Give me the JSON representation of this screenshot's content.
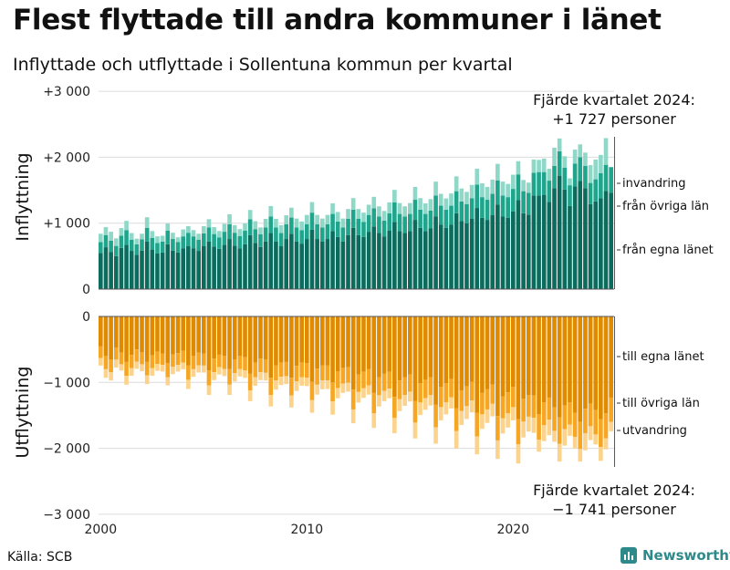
{
  "title": "Flest flyttade till andra kommuner i länet",
  "subtitle": "Inflyttade och utflyttade i Sollentuna kommun per kvartal",
  "source": "Källa: SCB",
  "brand": {
    "name": "Newsworthy",
    "icon": "bar-chart-logo-icon"
  },
  "colors": {
    "in_own": "#0b6b5d",
    "in_other": "#1fa58b",
    "in_immig": "#8fd8c8",
    "out_own": "#e08a00",
    "out_other": "#f6a623",
    "out_emig": "#fbd38d",
    "grid": "#dcdcdc"
  },
  "chart_data": [
    {
      "type": "bar",
      "stacked": true,
      "panel": "top",
      "ylabel": "Inflyttning",
      "ylim": [
        0,
        3000
      ],
      "yticks": [
        0,
        1000,
        2000,
        3000
      ],
      "ytick_labels": [
        "0",
        "+1 000",
        "+2 000",
        "+3 000"
      ],
      "x_start": "2000 Q1",
      "quarters": 100,
      "series": [
        {
          "name": "från egna länet",
          "values": [
            550,
            635,
            565,
            500,
            625,
            670,
            580,
            520,
            585,
            720,
            600,
            540,
            555,
            680,
            585,
            555,
            620,
            655,
            620,
            580,
            650,
            720,
            645,
            610,
            670,
            760,
            660,
            620,
            680,
            820,
            700,
            640,
            720,
            850,
            720,
            650,
            760,
            840,
            720,
            690,
            760,
            900,
            760,
            720,
            760,
            880,
            790,
            720,
            820,
            930,
            820,
            790,
            870,
            950,
            850,
            800,
            890,
            1020,
            880,
            850,
            880,
            1050,
            930,
            880,
            920,
            1100,
            980,
            930,
            980,
            1150,
            1030,
            1000,
            1070,
            1230,
            1080,
            1050,
            1120,
            1280,
            1100,
            1080,
            1180,
            1350,
            1150,
            1130,
            1420,
            1420,
            1430,
            1320,
            1530,
            1720,
            1510,
            1260,
            1560,
            1640,
            1530,
            1290,
            1330,
            1380,
            1490,
            1460
          ]
        },
        {
          "name": "från övriga län",
          "values": [
            165,
            185,
            170,
            155,
            185,
            225,
            170,
            160,
            170,
            210,
            175,
            160,
            165,
            205,
            175,
            160,
            180,
            200,
            180,
            170,
            195,
            215,
            190,
            175,
            200,
            225,
            195,
            185,
            205,
            240,
            210,
            190,
            215,
            250,
            215,
            200,
            225,
            245,
            215,
            205,
            225,
            260,
            225,
            215,
            225,
            260,
            235,
            215,
            245,
            275,
            245,
            230,
            255,
            275,
            250,
            240,
            260,
            295,
            260,
            250,
            260,
            305,
            275,
            260,
            270,
            320,
            285,
            275,
            285,
            335,
            300,
            290,
            310,
            355,
            315,
            305,
            325,
            370,
            320,
            315,
            340,
            390,
            335,
            330,
            345,
            355,
            345,
            325,
            340,
            370,
            330,
            315,
            345,
            360,
            340,
            320,
            335,
            380,
            395,
            390
          ]
        },
        {
          "name": "invandring",
          "values": [
            125,
            120,
            135,
            115,
            115,
            140,
            100,
            85,
            85,
            160,
            105,
            100,
            90,
            110,
            95,
            70,
            105,
            100,
            95,
            90,
            110,
            125,
            105,
            95,
            120,
            150,
            115,
            105,
            110,
            140,
            120,
            105,
            130,
            160,
            130,
            120,
            135,
            150,
            135,
            130,
            140,
            160,
            140,
            135,
            140,
            160,
            145,
            135,
            150,
            175,
            150,
            140,
            155,
            175,
            155,
            145,
            165,
            190,
            165,
            155,
            165,
            195,
            175,
            160,
            175,
            210,
            180,
            170,
            185,
            225,
            195,
            185,
            200,
            240,
            210,
            195,
            215,
            250,
            210,
            200,
            215,
            200,
            170,
            155,
            200,
            185,
            205,
            180,
            275,
            195,
            175,
            105,
            210,
            195,
            200,
            270,
            300,
            275,
            405,
            -123
          ]
        }
      ]
    },
    {
      "type": "bar",
      "stacked": true,
      "panel": "bottom",
      "ylabel": "Utflyttning",
      "ylim": [
        -3000,
        0
      ],
      "yticks": [
        -3000,
        -2000,
        -1000,
        0
      ],
      "ytick_labels": [
        "−3 000",
        "−2 000",
        "−1 000",
        "0"
      ],
      "xtick_labels": [
        {
          "year": "2000",
          "quarter_index": 0
        },
        {
          "year": "2010",
          "quarter_index": 40
        },
        {
          "year": "2020",
          "quarter_index": 80
        }
      ],
      "series": [
        {
          "name": "till egna länet",
          "values": [
            -455,
            -600,
            -650,
            -470,
            -550,
            -690,
            -585,
            -500,
            -545,
            -690,
            -590,
            -535,
            -560,
            -705,
            -575,
            -555,
            -520,
            -740,
            -600,
            -550,
            -560,
            -820,
            -640,
            -580,
            -600,
            -800,
            -650,
            -600,
            -620,
            -870,
            -700,
            -640,
            -650,
            -930,
            -740,
            -700,
            -690,
            -930,
            -750,
            -700,
            -710,
            -990,
            -790,
            -740,
            -740,
            -1000,
            -830,
            -780,
            -770,
            -1110,
            -880,
            -840,
            -800,
            -1160,
            -920,
            -870,
            -840,
            -1220,
            -970,
            -920,
            -880,
            -1280,
            -1010,
            -960,
            -920,
            -1340,
            -1070,
            -1010,
            -950,
            -1390,
            -1120,
            -1060,
            -990,
            -1460,
            -1160,
            -1100,
            -1030,
            -1510,
            -1210,
            -1150,
            -1070,
            -1560,
            -1250,
            -1190,
            -1200,
            -1480,
            -1300,
            -1230,
            -1380,
            -1530,
            -1350,
            -1300,
            -1460,
            -1600,
            -1400,
            -1320,
            -1420,
            -1560,
            -1470,
            -1230
          ]
        },
        {
          "name": "till övriga län",
          "values": [
            -175,
            -200,
            -195,
            -185,
            -175,
            -210,
            -200,
            -185,
            -180,
            -205,
            -195,
            -185,
            -175,
            -215,
            -190,
            -180,
            -180,
            -220,
            -200,
            -190,
            -185,
            -225,
            -205,
            -190,
            -195,
            -235,
            -210,
            -195,
            -200,
            -250,
            -220,
            -205,
            -205,
            -260,
            -230,
            -215,
            -215,
            -270,
            -235,
            -220,
            -220,
            -280,
            -245,
            -230,
            -230,
            -290,
            -255,
            -240,
            -235,
            -300,
            -265,
            -250,
            -245,
            -310,
            -275,
            -260,
            -255,
            -320,
            -285,
            -270,
            -260,
            -330,
            -295,
            -280,
            -270,
            -340,
            -305,
            -290,
            -275,
            -350,
            -315,
            -300,
            -285,
            -360,
            -325,
            -310,
            -295,
            -370,
            -335,
            -320,
            -305,
            -380,
            -345,
            -330,
            -335,
            -390,
            -350,
            -335,
            -355,
            -400,
            -360,
            -340,
            -365,
            -410,
            -370,
            -345,
            -370,
            -420,
            -380,
            -370
          ]
        },
        {
          "name": "utvandring",
          "values": [
            -115,
            -130,
            -125,
            -120,
            -95,
            -135,
            -115,
            -110,
            -105,
            -130,
            -115,
            -105,
            -100,
            -125,
            -110,
            -100,
            -100,
            -140,
            -115,
            -110,
            -105,
            -145,
            -120,
            -110,
            -110,
            -155,
            -125,
            -115,
            -110,
            -165,
            -130,
            -120,
            -115,
            -175,
            -140,
            -125,
            -120,
            -180,
            -145,
            -130,
            -125,
            -190,
            -150,
            -135,
            -130,
            -200,
            -155,
            -140,
            -135,
            -210,
            -160,
            -145,
            -140,
            -220,
            -170,
            -155,
            -145,
            -230,
            -180,
            -165,
            -150,
            -240,
            -190,
            -175,
            -160,
            -250,
            -200,
            -185,
            -170,
            -260,
            -210,
            -195,
            -180,
            -270,
            -220,
            -205,
            -190,
            -280,
            -230,
            -215,
            -200,
            -290,
            -240,
            -225,
            -230,
            -180,
            -240,
            -235,
            -165,
            -270,
            -250,
            -170,
            -175,
            -190,
            -260,
            -210,
            -150,
            -210,
            -165,
            -141
          ]
        }
      ]
    }
  ],
  "annotations": {
    "in_label_1": "Fjärde kvartalet 2024:",
    "in_label_2": "+1 727 personer",
    "out_label_1": "Fjärde kvartalet 2024:",
    "out_label_2": "−1 741 personer"
  }
}
